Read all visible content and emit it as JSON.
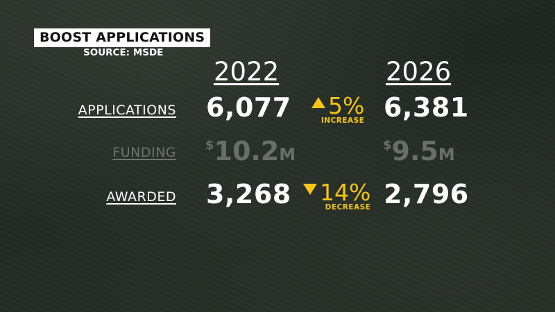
{
  "header": {
    "title": "BOOST APPLICATIONS",
    "source": "SOURCE: MSDE"
  },
  "years": [
    "2022",
    "2026"
  ],
  "rows": [
    {
      "label": "APPLICATIONS",
      "value_2022": "6,077",
      "change_pct": "5%",
      "change_direction": "up",
      "change_word": "INCREASE",
      "value_2026": "6,381"
    },
    {
      "label": "FUNDING",
      "value_2022": {
        "currency": "$",
        "number": "10.2",
        "unit": "M"
      },
      "value_2026": {
        "currency": "$",
        "number": "9.5",
        "unit": "M"
      }
    },
    {
      "label": "AWARDED",
      "value_2022": "3,268",
      "change_pct": "14%",
      "change_direction": "down",
      "change_word": "DECREASE",
      "value_2026": "2,796"
    }
  ],
  "colors": {
    "accent": "#f5c518",
    "text": "#ffffff",
    "dim": "#6a6e6a",
    "background": "#252b25"
  }
}
